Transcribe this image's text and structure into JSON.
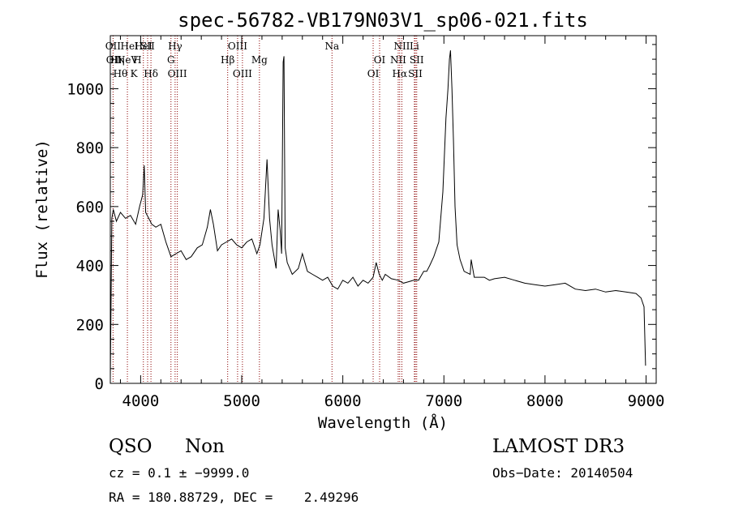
{
  "chart_data": {
    "type": "line",
    "title": "spec-56782-VB179N03V1_sp06-021.fits",
    "xlabel": "Wavelength (Å)",
    "ylabel": "Flux (relative)",
    "xlim": [
      3700,
      9100
    ],
    "ylim": [
      0,
      1180
    ],
    "x_ticks": [
      4000,
      5000,
      6000,
      7000,
      8000,
      9000
    ],
    "y_ticks": [
      0,
      200,
      400,
      600,
      800,
      1000
    ],
    "line_color": "#000000",
    "marker_color": "#8b0000",
    "series": [
      {
        "x": [
          3700,
          3715,
          3730,
          3760,
          3800,
          3850,
          3900,
          3950,
          3990,
          4020,
          4035,
          4050,
          4080,
          4110,
          4150,
          4200,
          4250,
          4300,
          4350,
          4400,
          4450,
          4500,
          4560,
          4610,
          4660,
          4690,
          4720,
          4760,
          4800,
          4850,
          4900,
          4950,
          5000,
          5050,
          5100,
          5150,
          5180,
          5220,
          5250,
          5275,
          5300,
          5340,
          5360,
          5380,
          5395,
          5410,
          5418,
          5430,
          5450,
          5500,
          5560,
          5600,
          5650,
          5700,
          5750,
          5800,
          5850,
          5900,
          5950,
          6000,
          6050,
          6100,
          6150,
          6200,
          6250,
          6300,
          6330,
          6360,
          6390,
          6420,
          6480,
          6550,
          6600,
          6650,
          6700,
          6750,
          6800,
          6830,
          6860,
          6900,
          6950,
          6990,
          7020,
          7040,
          7055,
          7065,
          7080,
          7095,
          7110,
          7130,
          7160,
          7200,
          7260,
          7270,
          7300,
          7350,
          7400,
          7450,
          7500,
          7600,
          7700,
          7800,
          7900,
          8000,
          8100,
          8200,
          8300,
          8400,
          8500,
          8600,
          8700,
          8800,
          8900,
          8950,
          8980,
          8995
        ],
        "y": [
          20,
          560,
          590,
          550,
          580,
          560,
          570,
          540,
          600,
          640,
          740,
          580,
          560,
          540,
          530,
          540,
          480,
          430,
          440,
          450,
          420,
          430,
          460,
          470,
          530,
          590,
          540,
          450,
          470,
          480,
          490,
          470,
          460,
          480,
          490,
          440,
          470,
          560,
          760,
          560,
          470,
          390,
          590,
          520,
          440,
          1090,
          1110,
          460,
          410,
          370,
          390,
          440,
          380,
          370,
          360,
          350,
          360,
          330,
          320,
          350,
          340,
          360,
          330,
          350,
          340,
          360,
          410,
          370,
          350,
          370,
          355,
          350,
          340,
          345,
          350,
          350,
          380,
          380,
          400,
          430,
          480,
          650,
          900,
          1000,
          1100,
          1130,
          1000,
          820,
          600,
          470,
          420,
          380,
          370,
          420,
          360,
          360,
          360,
          350,
          355,
          360,
          350,
          340,
          335,
          330,
          335,
          340,
          320,
          315,
          320,
          310,
          315,
          310,
          305,
          290,
          260,
          60
        ]
      }
    ],
    "line_markers": [
      {
        "x": 3727,
        "label": "OII",
        "row": 0
      },
      {
        "x": 3869,
        "label": "NeV",
        "row": 1
      },
      {
        "x": 4027,
        "label": "HeI",
        "row": 0
      },
      {
        "x": 4069,
        "label": "SII",
        "row": 0
      },
      {
        "x": 4102,
        "label": "Hδ",
        "row": 2
      },
      {
        "x": 4300,
        "label": "G",
        "row": 1
      },
      {
        "x": 4341,
        "label": "Hγ",
        "row": 0
      },
      {
        "x": 4363,
        "label": "OIII",
        "row": 2
      },
      {
        "x": 4861,
        "label": "Hβ",
        "row": 1
      },
      {
        "x": 4959,
        "label": "OIII",
        "row": 0
      },
      {
        "x": 5007,
        "label": "OIII",
        "row": 2
      },
      {
        "x": 5175,
        "label": "Mg",
        "row": 1
      },
      {
        "x": 5893,
        "label": "Na",
        "row": 0
      },
      {
        "x": 6300,
        "label": "OI",
        "row": 2
      },
      {
        "x": 6364,
        "label": "OI",
        "row": 1
      },
      {
        "x": 6548,
        "label": "NII",
        "row": 1
      },
      {
        "x": 6563,
        "label": "Hα",
        "row": 2
      },
      {
        "x": 6584,
        "label": "NII",
        "row": 0
      },
      {
        "x": 6708,
        "label": "Li",
        "row": 0
      },
      {
        "x": 6717,
        "label": "SII",
        "row": 2
      },
      {
        "x": 6731,
        "label": "SII",
        "row": 1
      }
    ],
    "extra_labels": [
      {
        "x": 3735,
        "label": "OII",
        "row": 1
      },
      {
        "x": 3770,
        "label": "Hη",
        "row": 1
      },
      {
        "x": 3800,
        "label": "Hθ",
        "row": 2
      },
      {
        "x": 3890,
        "label": "HeI",
        "row": 0
      },
      {
        "x": 3934,
        "label": "K",
        "row": 2
      },
      {
        "x": 3968,
        "label": "H",
        "row": 1
      }
    ],
    "grid": false,
    "legend": "none"
  },
  "info": {
    "class": "QSO",
    "subclass": "Non",
    "survey": "LAMOST DR3",
    "cz": "cz = 0.1 ± −9999.0",
    "obs_date": "Obs−Date: 20140504",
    "radec": "RA = 180.88729, DEC =    2.49296"
  }
}
